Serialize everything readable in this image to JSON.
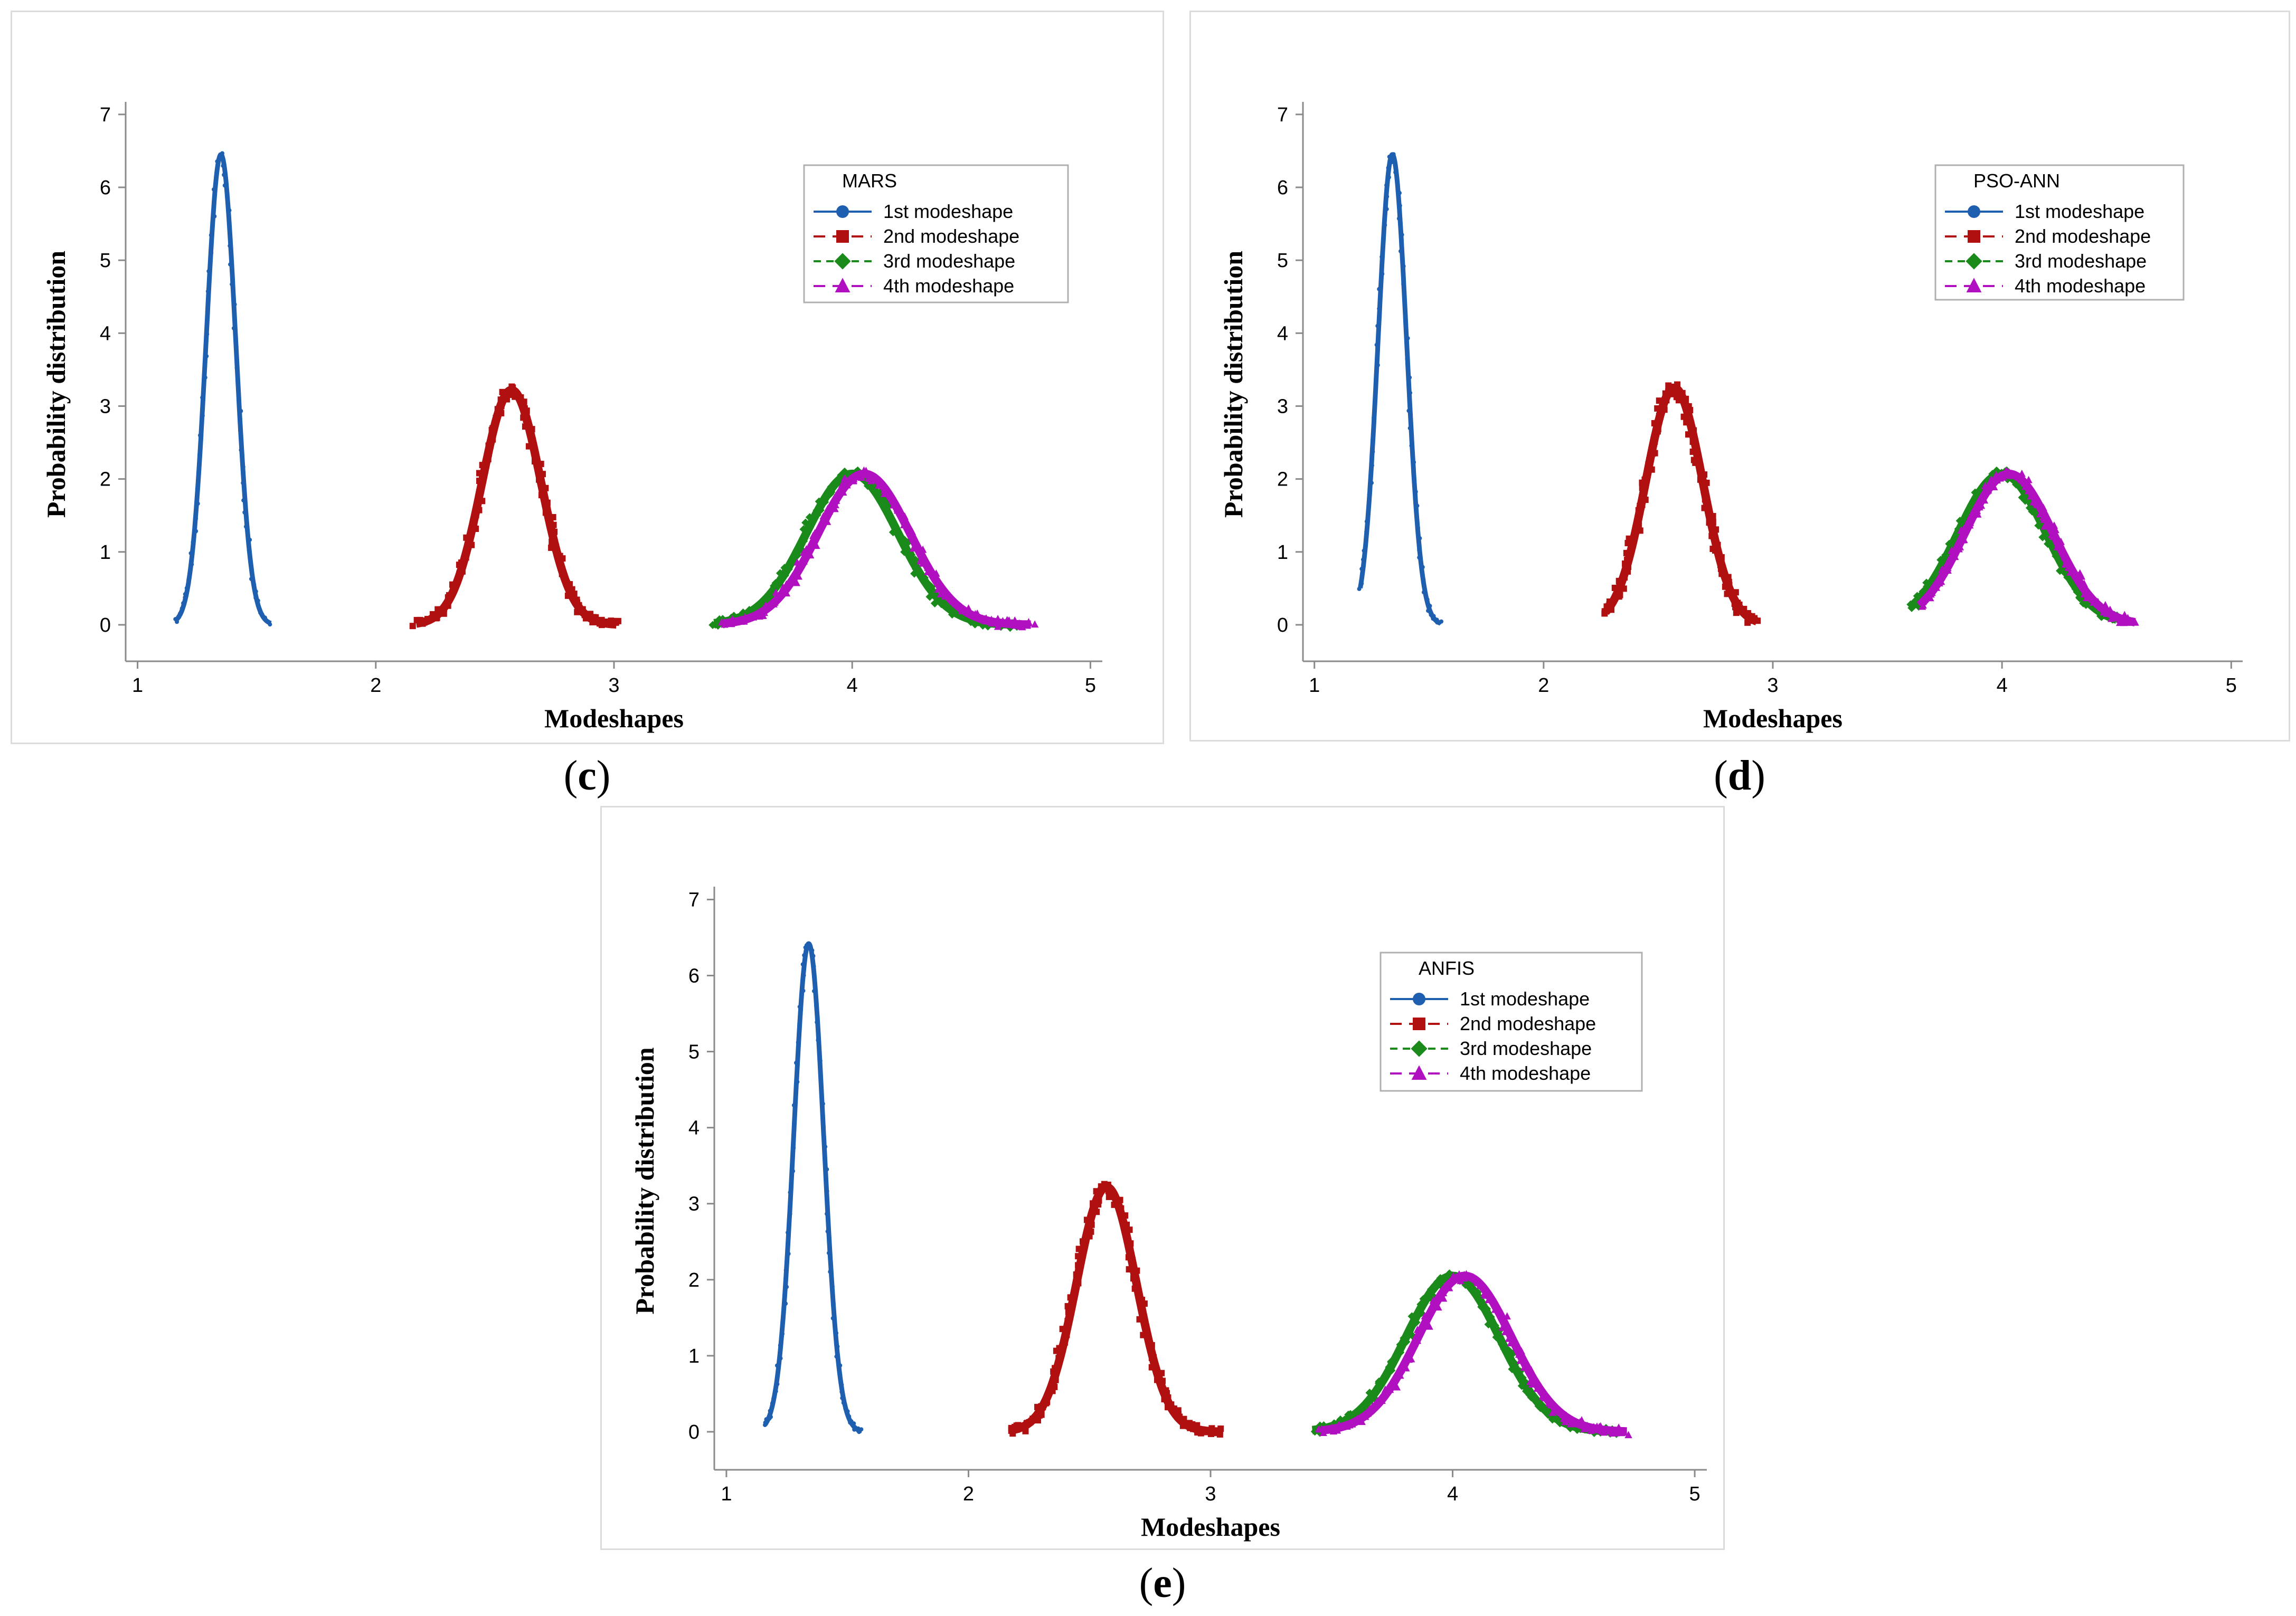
{
  "colors": {
    "s1": "#1f5fb0",
    "s2": "#b01010",
    "s3": "#1a8a1a",
    "s4": "#b010c0",
    "axis": "#8a8a8a"
  },
  "chart_data": [
    {
      "id": "c",
      "caption_letter": "c",
      "type": "line",
      "title": "",
      "legend_title": "MARS",
      "xlabel": "Modeshapes",
      "ylabel": "Probability distribution",
      "xlim": [
        0.95,
        5.05
      ],
      "ylim": [
        -0.5,
        7.1
      ],
      "xticks": [
        "1",
        "2",
        "3",
        "4",
        "5"
      ],
      "yticks": [
        "0",
        "1",
        "2",
        "3",
        "4",
        "5",
        "6",
        "7"
      ],
      "series": [
        {
          "name": "1st modeshape",
          "mean": 1.35,
          "std": 0.062,
          "peak": 6.45,
          "x_range": [
            1.16,
            1.56
          ]
        },
        {
          "name": "2nd modeshape",
          "mean": 2.57,
          "std": 0.124,
          "peak": 3.22,
          "x_range": [
            2.17,
            3.01
          ]
        },
        {
          "name": "3rd modeshape",
          "mean": 4.0,
          "std": 0.193,
          "peak": 2.07,
          "x_range": [
            3.42,
            4.7
          ]
        },
        {
          "name": "4th modeshape",
          "mean": 4.05,
          "std": 0.193,
          "peak": 2.07,
          "x_range": [
            3.46,
            4.75
          ]
        }
      ]
    },
    {
      "id": "d",
      "caption_letter": "d",
      "type": "line",
      "title": "",
      "legend_title": "PSO-ANN",
      "xlabel": "Modeshapes",
      "ylabel": "Probability distribution",
      "xlim": [
        0.95,
        5.05
      ],
      "ylim": [
        -0.5,
        7.1
      ],
      "xticks": [
        "1",
        "2",
        "3",
        "4",
        "5"
      ],
      "yticks": [
        "0",
        "1",
        "2",
        "3",
        "4",
        "5",
        "6",
        "7"
      ],
      "series": [
        {
          "name": "1st modeshape",
          "mean": 1.34,
          "std": 0.062,
          "peak": 6.45,
          "x_range": [
            1.2,
            1.55
          ]
        },
        {
          "name": "2nd modeshape",
          "mean": 2.57,
          "std": 0.124,
          "peak": 3.25,
          "x_range": [
            2.27,
            2.93
          ]
        },
        {
          "name": "3rd modeshape",
          "mean": 4.0,
          "std": 0.193,
          "peak": 2.07,
          "x_range": [
            3.6,
            4.5
          ]
        },
        {
          "name": "4th modeshape",
          "mean": 4.03,
          "std": 0.193,
          "peak": 2.07,
          "x_range": [
            3.64,
            4.58
          ]
        }
      ]
    },
    {
      "id": "e",
      "caption_letter": "e",
      "type": "line",
      "title": "",
      "legend_title": "ANFIS",
      "xlabel": "Modeshapes",
      "ylabel": "Probability distribution",
      "xlim": [
        0.95,
        5.05
      ],
      "ylim": [
        -0.5,
        7.1
      ],
      "xticks": [
        "1",
        "2",
        "3",
        "4",
        "5"
      ],
      "yticks": [
        "0",
        "1",
        "2",
        "3",
        "4",
        "5",
        "6",
        "7"
      ],
      "series": [
        {
          "name": "1st modeshape",
          "mean": 1.34,
          "std": 0.062,
          "peak": 6.42,
          "x_range": [
            1.16,
            1.56
          ]
        },
        {
          "name": "2nd modeshape",
          "mean": 2.57,
          "std": 0.124,
          "peak": 3.22,
          "x_range": [
            2.17,
            3.03
          ]
        },
        {
          "name": "3rd modeshape",
          "mean": 4.0,
          "std": 0.193,
          "peak": 2.05,
          "x_range": [
            3.42,
            4.68
          ]
        },
        {
          "name": "4th modeshape",
          "mean": 4.05,
          "std": 0.193,
          "peak": 2.05,
          "x_range": [
            3.46,
            4.72
          ]
        }
      ]
    }
  ]
}
